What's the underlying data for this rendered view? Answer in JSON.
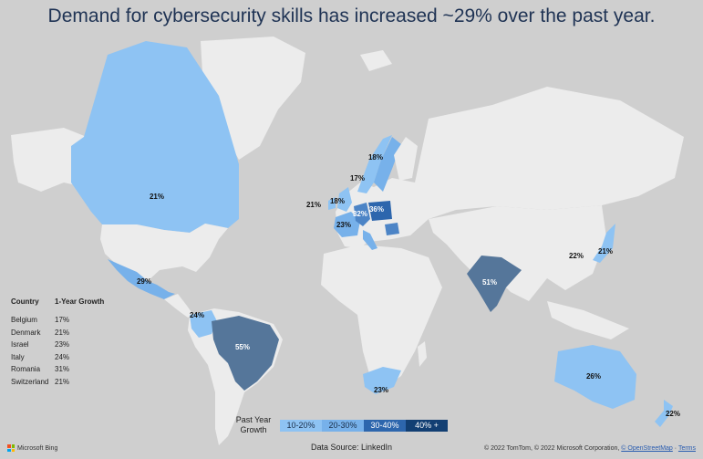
{
  "title": "Demand for cybersecurity skills has increased ~29% over the past year.",
  "map": {
    "colors": {
      "land": "#ececec",
      "water": "#cfcfcf",
      "bin_10_20": "#8ec3f3",
      "bin_20_30": "#77b1ea",
      "bin_30_40": "#4c84c6",
      "bin_40_plus": "#1d4e89",
      "bin_50_plus": "#55769a"
    },
    "regions": [
      {
        "name": "Canada",
        "value": "21%"
      },
      {
        "name": "Mexico",
        "value": "29%"
      },
      {
        "name": "Colombia",
        "value": "24%"
      },
      {
        "name": "Brazil",
        "value": "55%"
      },
      {
        "name": "Ireland",
        "value": "21%"
      },
      {
        "name": "United Kingdom",
        "value": "18%"
      },
      {
        "name": "Norway",
        "value": "17%"
      },
      {
        "name": "Sweden",
        "value": "18%"
      },
      {
        "name": "France",
        "value": "23%"
      },
      {
        "name": "Germany",
        "value": "32%"
      },
      {
        "name": "Poland",
        "value": "36%"
      },
      {
        "name": "India",
        "value": "51%"
      },
      {
        "name": "South Africa",
        "value": "23%"
      },
      {
        "name": "China",
        "value": "22%"
      },
      {
        "name": "Japan",
        "value": "21%"
      },
      {
        "name": "Australia",
        "value": "26%"
      },
      {
        "name": "New Zealand",
        "value": "22%"
      }
    ]
  },
  "table": {
    "headers": [
      "Country",
      "1-Year Growth"
    ],
    "rows": [
      {
        "country": "Belgium",
        "growth": "17%"
      },
      {
        "country": "Denmark",
        "growth": "21%"
      },
      {
        "country": "Israel",
        "growth": "23%"
      },
      {
        "country": "Italy",
        "growth": "24%"
      },
      {
        "country": "Romania",
        "growth": "31%"
      },
      {
        "country": "Switzerland",
        "growth": "21%"
      }
    ]
  },
  "legend": {
    "title": "Past Year Growth",
    "items": [
      {
        "label": "10-20%",
        "color": "#8ec3f3",
        "text_color": "#1b2f4a"
      },
      {
        "label": "20-30%",
        "color": "#77b1ea",
        "text_color": "#1b2f4a"
      },
      {
        "label": "30-40%",
        "color": "#2d66ad",
        "text_color": "#ffffff"
      },
      {
        "label": "40% +",
        "color": "#123f73",
        "text_color": "#ffffff"
      }
    ]
  },
  "source": "Data Source: LinkedIn",
  "attribution": {
    "brand": "Microsoft Bing",
    "copyright": "© 2022 TomTom, © 2022 Microsoft Corporation,",
    "osm": "© OpenStreetMap",
    "terms": "Terms"
  }
}
